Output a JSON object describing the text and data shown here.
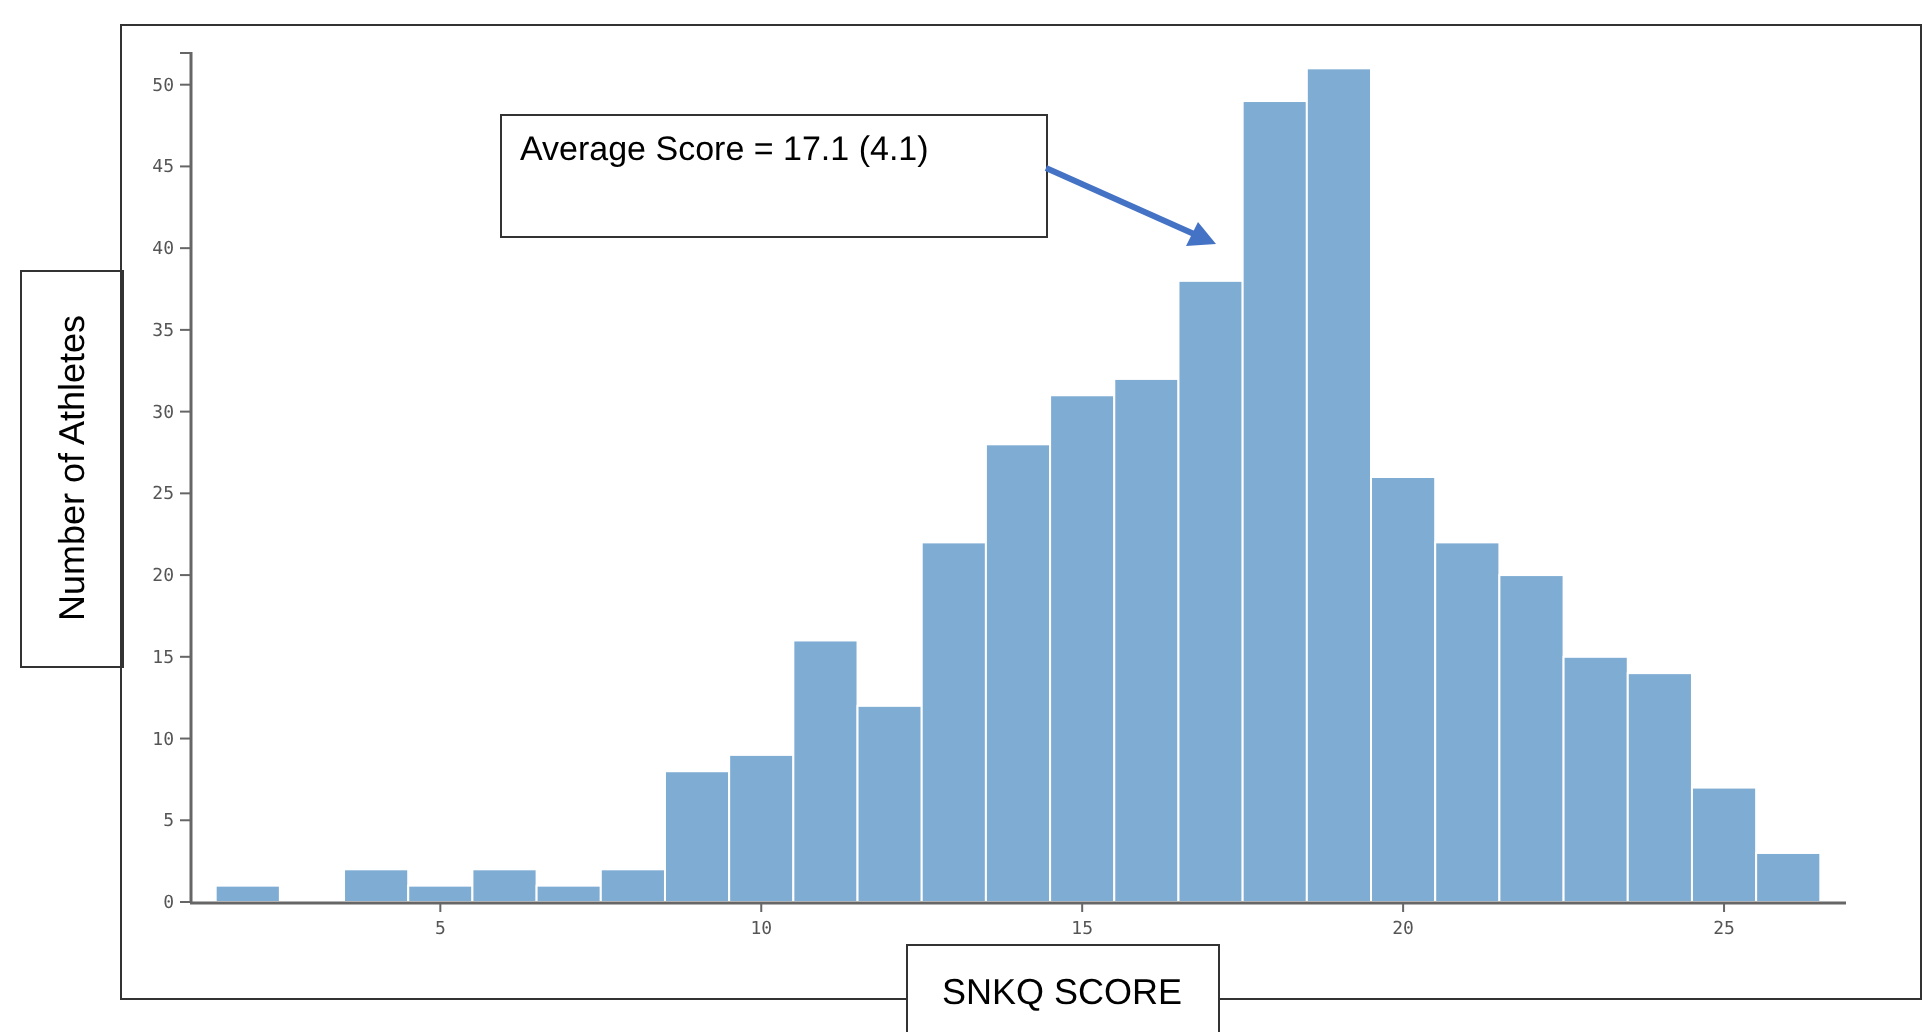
{
  "chart_data": {
    "type": "histogram",
    "xlabel": "SNKQ SCORE",
    "ylabel": "Number of Athletes",
    "bins": [
      1.5,
      2.5,
      3.5,
      4.5,
      5.5,
      6.5,
      7.5,
      8.5,
      9.5,
      10.5,
      11.5,
      12.5,
      13.5,
      14.5,
      15.5,
      16.5,
      17.5,
      18.5,
      19.5,
      20.5,
      21.5,
      22.5,
      23.5,
      24.5,
      25.5,
      26.5
    ],
    "values": [
      1,
      0,
      2,
      1,
      2,
      1,
      2,
      8,
      9,
      16,
      12,
      22,
      28,
      31,
      32,
      38,
      49,
      51,
      26,
      22,
      20,
      15,
      14,
      7,
      3
    ],
    "color": "#7facd3",
    "xlim": [
      1.1,
      26.9
    ],
    "xticks": [
      5,
      10,
      15,
      20,
      25
    ],
    "ylim": [
      0,
      52
    ],
    "yticks": [
      0,
      5,
      10,
      15,
      20,
      25,
      30,
      35,
      40,
      45,
      50
    ],
    "grid": false,
    "annotations": [
      "Average Score = 17.1 (4.1)"
    ]
  }
}
